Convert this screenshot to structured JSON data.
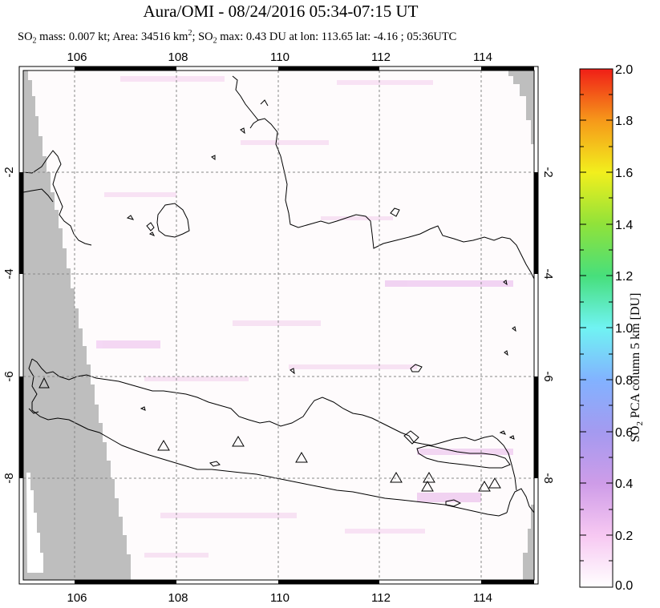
{
  "title": "Aura/OMI - 08/24/2016 05:34-07:15 UT",
  "subtitle": {
    "p1": "SO",
    "p1_sub": "2",
    "p2": " mass: 0.007 kt; Area: 34516 km",
    "p2_sup": "2",
    "p3": "; SO",
    "p3_sub": "2",
    "p4": " max: 0.43 DU at lon: 113.65 lat: -4.16 ; 05:36UTC"
  },
  "map": {
    "lon_ticks": [
      "106",
      "108",
      "110",
      "112",
      "114"
    ],
    "lat_ticks": [
      "-2",
      "-4",
      "-6",
      "-8"
    ],
    "lat_ticks_right": [
      "-2",
      "-4",
      "-6",
      "-8"
    ],
    "lon_range": [
      105,
      115
    ],
    "lat_range": [
      -10.2,
      0.0
    ],
    "volcano_marker": "triangle-outline",
    "no_data_color": "#bebebe",
    "so2_max_location": {
      "lon": 113.65,
      "lat": -4.16,
      "value": 0.43
    }
  },
  "colorbar": {
    "title_pre": "SO",
    "title_sub": "2",
    "title_post": " PCA column 5 km [DU]",
    "labels": [
      "2.0",
      "1.8",
      "1.6",
      "1.4",
      "1.2",
      "1.0",
      "0.8",
      "0.6",
      "0.4",
      "0.2",
      "0.0"
    ],
    "range": [
      0.0,
      2.0
    ],
    "colors": [
      "#ffffff",
      "#f7b8f0",
      "#a78fe8",
      "#7fb0ff",
      "#6ff5f5",
      "#49e07c",
      "#8ee23b",
      "#f3f01d",
      "#f7a21a",
      "#f44f17",
      "#f01e17"
    ]
  }
}
